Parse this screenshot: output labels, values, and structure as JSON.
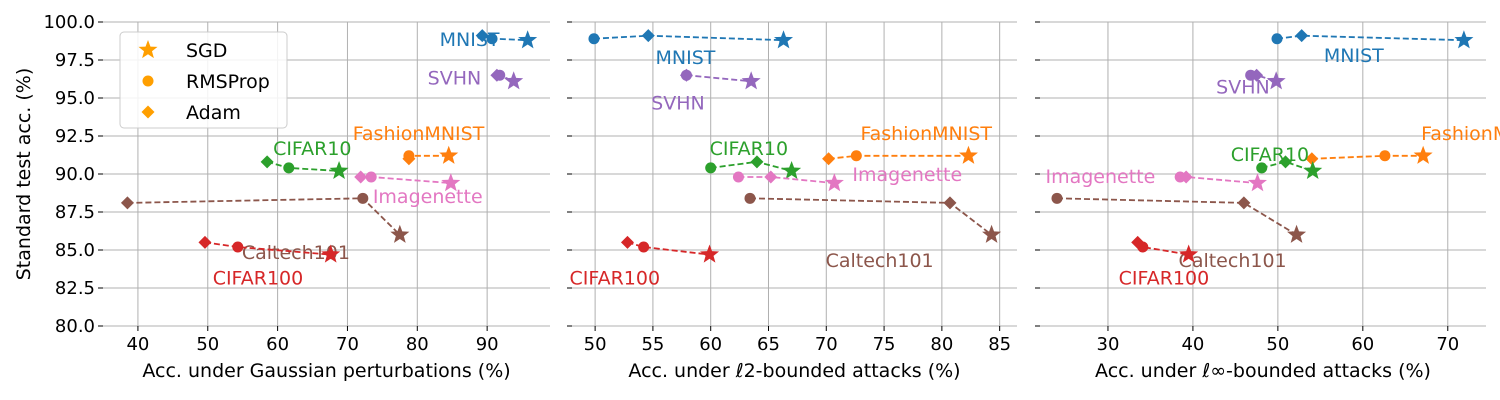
{
  "figure": {
    "ylabel": "Standard test acc. (%)",
    "yticks": [
      "100.0",
      "97.5",
      "95.0",
      "92.5",
      "90.0",
      "87.5",
      "85.0",
      "82.5",
      "80.0"
    ],
    "legend": {
      "placement": "upper-left of first panel",
      "entries": [
        {
          "label": "SGD",
          "marker": "star",
          "color": "#ff9f00"
        },
        {
          "label": "RMSProp",
          "marker": "circle",
          "color": "#ff9f00"
        },
        {
          "label": "Adam",
          "marker": "diamond",
          "color": "#ff9f00"
        }
      ]
    }
  },
  "chart_data": [
    {
      "type": "scatter",
      "xlabel": "Acc. under Gaussian perturbations (%)",
      "xticks": [
        "40",
        "50",
        "60",
        "70",
        "80",
        "90"
      ],
      "xlim": [
        35,
        99
      ],
      "ylim": [
        80,
        100
      ],
      "grid": true,
      "series": [
        {
          "name": "MNIST",
          "color": "#1f77b4",
          "points": {
            "SGD": [
              95.8,
              98.8
            ],
            "RMSProp": [
              90.7,
              98.9
            ],
            "Adam": [
              89.3,
              99.1
            ]
          }
        },
        {
          "name": "SVHN",
          "color": "#9467bd",
          "points": {
            "SGD": [
              93.8,
              96.1
            ],
            "RMSProp": [
              91.8,
              96.5
            ],
            "Adam": [
              91.4,
              96.5
            ]
          }
        },
        {
          "name": "FashionMNIST",
          "color": "#ff7f0e",
          "points": {
            "SGD": [
              84.5,
              91.2
            ],
            "RMSProp": [
              78.8,
              91.2
            ],
            "Adam": [
              78.8,
              91.0
            ]
          }
        },
        {
          "name": "CIFAR10",
          "color": "#2ca02c",
          "points": {
            "SGD": [
              68.8,
              90.2
            ],
            "RMSProp": [
              61.6,
              90.4
            ],
            "Adam": [
              58.5,
              90.8
            ]
          }
        },
        {
          "name": "Imagenette",
          "color": "#e377c2",
          "points": {
            "SGD": [
              84.8,
              89.4
            ],
            "RMSProp": [
              73.4,
              89.8
            ],
            "Adam": [
              71.9,
              89.8
            ]
          }
        },
        {
          "name": "Caltech101",
          "color": "#8c564b",
          "points": {
            "SGD": [
              77.5,
              86.0
            ],
            "RMSProp": [
              72.2,
              88.4
            ],
            "Adam": [
              38.5,
              88.1
            ]
          }
        },
        {
          "name": "CIFAR100",
          "color": "#d62728",
          "points": {
            "SGD": [
              67.6,
              84.7
            ],
            "RMSProp": [
              54.3,
              85.2
            ],
            "Adam": [
              49.6,
              85.5
            ]
          }
        }
      ]
    },
    {
      "type": "scatter",
      "xlabel": "Acc. under ℓ2-bounded attacks (%)",
      "xticks": [
        "50",
        "55",
        "60",
        "65",
        "70",
        "75",
        "80",
        "85"
      ],
      "xlim": [
        48,
        86.5
      ],
      "ylim": [
        80,
        100
      ],
      "grid": true,
      "series": [
        {
          "name": "MNIST",
          "color": "#1f77b4",
          "points": {
            "SGD": [
              66.3,
              98.8
            ],
            "RMSProp": [
              49.9,
              98.9
            ],
            "Adam": [
              54.6,
              99.1
            ]
          }
        },
        {
          "name": "SVHN",
          "color": "#9467bd",
          "points": {
            "SGD": [
              63.5,
              96.1
            ],
            "RMSProp": [
              57.9,
              96.5
            ],
            "Adam": [
              57.9,
              96.5
            ]
          }
        },
        {
          "name": "FashionMNIST",
          "color": "#ff7f0e",
          "points": {
            "SGD": [
              82.3,
              91.2
            ],
            "RMSProp": [
              72.6,
              91.2
            ],
            "Adam": [
              70.2,
              91.0
            ]
          }
        },
        {
          "name": "CIFAR10",
          "color": "#2ca02c",
          "points": {
            "SGD": [
              67.0,
              90.2
            ],
            "RMSProp": [
              60.0,
              90.4
            ],
            "Adam": [
              64.0,
              90.8
            ]
          }
        },
        {
          "name": "Imagenette",
          "color": "#e377c2",
          "points": {
            "SGD": [
              70.7,
              89.4
            ],
            "RMSProp": [
              62.4,
              89.8
            ],
            "Adam": [
              65.2,
              89.8
            ]
          }
        },
        {
          "name": "Caltech101",
          "color": "#8c564b",
          "points": {
            "SGD": [
              84.3,
              86.0
            ],
            "RMSProp": [
              63.4,
              88.4
            ],
            "Adam": [
              80.7,
              88.1
            ]
          }
        },
        {
          "name": "CIFAR100",
          "color": "#d62728",
          "points": {
            "SGD": [
              59.9,
              84.7
            ],
            "RMSProp": [
              54.2,
              85.2
            ],
            "Adam": [
              52.8,
              85.5
            ]
          }
        }
      ]
    },
    {
      "type": "scatter",
      "xlabel": "Acc. under ℓ∞-bounded attacks (%)",
      "xticks": [
        "30",
        "40",
        "50",
        "60",
        "70"
      ],
      "xlim": [
        22,
        74.5
      ],
      "ylim": [
        80,
        100
      ],
      "grid": true,
      "series": [
        {
          "name": "MNIST",
          "color": "#1f77b4",
          "points": {
            "SGD": [
              71.9,
              98.8
            ],
            "RMSProp": [
              49.9,
              98.9
            ],
            "Adam": [
              52.8,
              99.1
            ]
          }
        },
        {
          "name": "SVHN",
          "color": "#9467bd",
          "points": {
            "SGD": [
              49.8,
              96.1
            ],
            "RMSProp": [
              46.8,
              96.5
            ],
            "Adam": [
              47.5,
              96.5
            ]
          }
        },
        {
          "name": "FashionMNIST",
          "color": "#ff7f0e",
          "points": {
            "SGD": [
              67.1,
              91.2
            ],
            "RMSProp": [
              62.6,
              91.2
            ],
            "Adam": [
              54.0,
              91.0
            ]
          }
        },
        {
          "name": "CIFAR10",
          "color": "#2ca02c",
          "points": {
            "SGD": [
              54.1,
              90.2
            ],
            "RMSProp": [
              48.1,
              90.4
            ],
            "Adam": [
              50.9,
              90.8
            ]
          }
        },
        {
          "name": "Imagenette",
          "color": "#e377c2",
          "points": {
            "SGD": [
              47.6,
              89.4
            ],
            "RMSProp": [
              38.5,
              89.8
            ],
            "Adam": [
              39.2,
              89.8
            ]
          }
        },
        {
          "name": "Caltech101",
          "color": "#8c564b",
          "points": {
            "SGD": [
              52.2,
              86.0
            ],
            "RMSProp": [
              24.0,
              88.4
            ],
            "Adam": [
              46.0,
              88.1
            ]
          }
        },
        {
          "name": "CIFAR100",
          "color": "#d62728",
          "points": {
            "SGD": [
              39.5,
              84.7
            ],
            "RMSProp": [
              34.1,
              85.2
            ],
            "Adam": [
              33.5,
              85.5
            ]
          }
        }
      ]
    }
  ]
}
